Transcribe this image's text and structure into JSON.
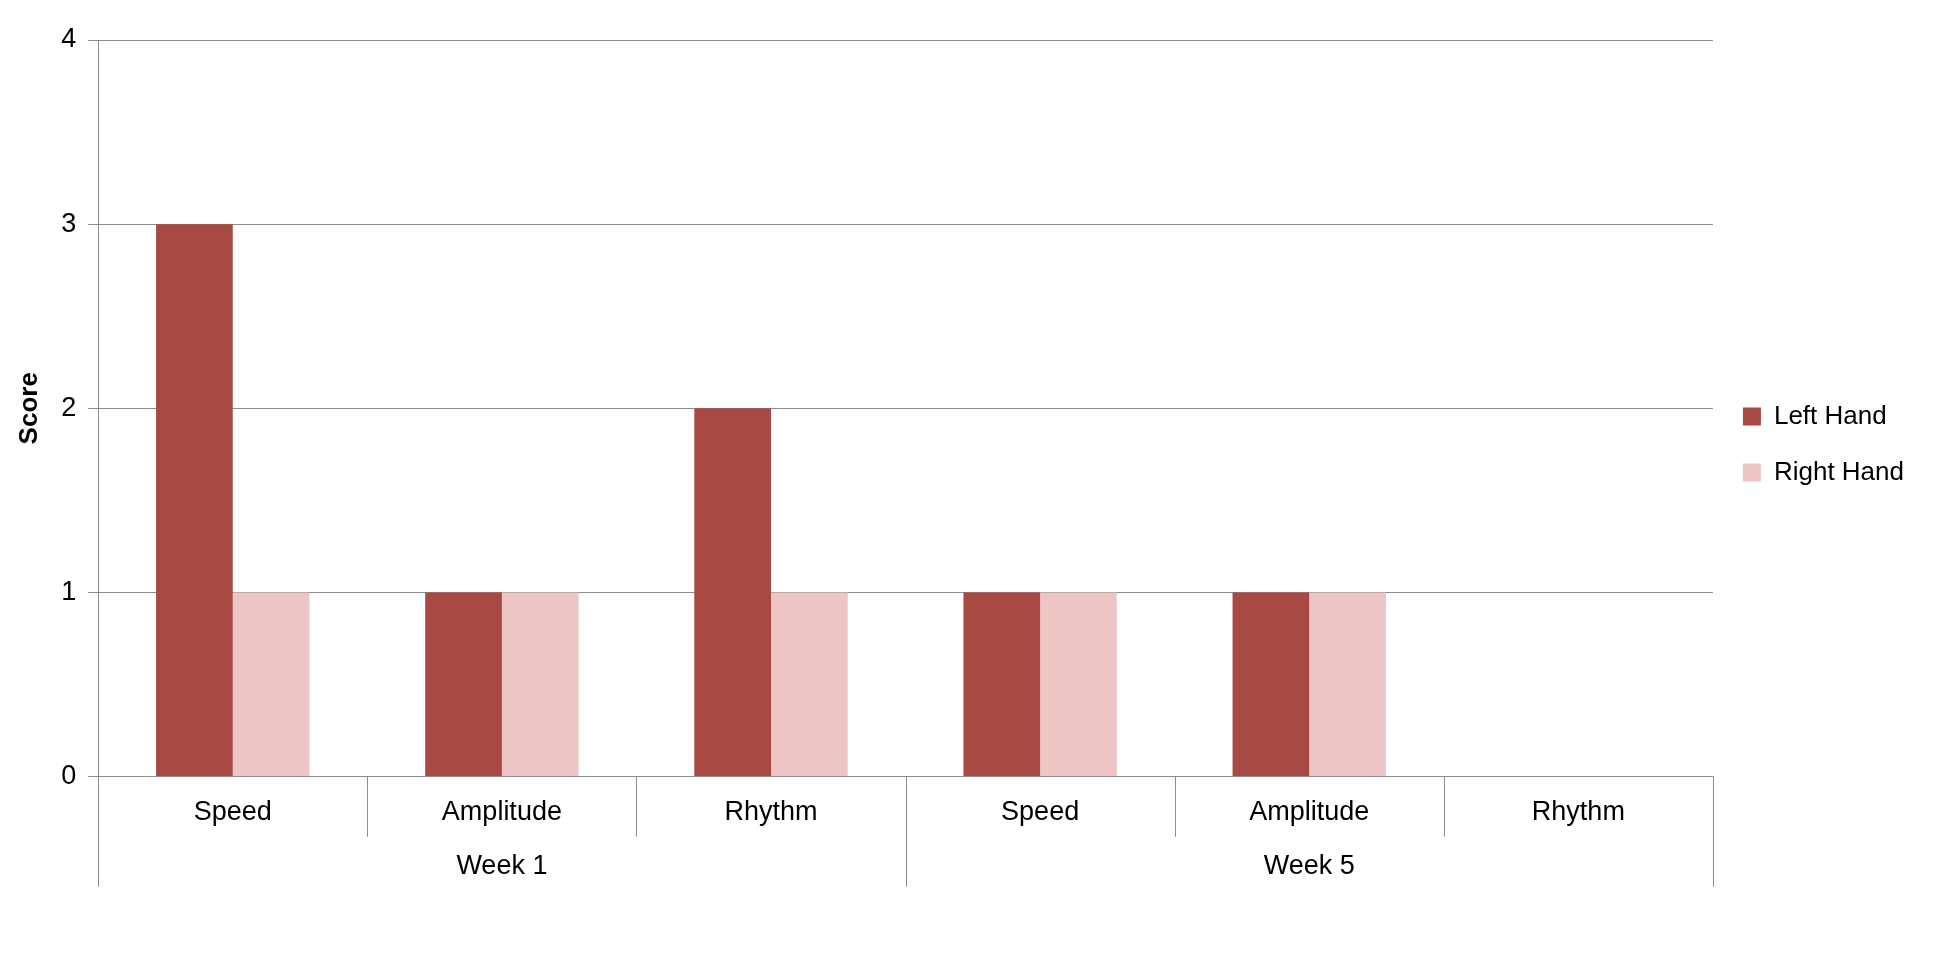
{
  "chart_data": {
    "type": "bar",
    "ylabel": "Score",
    "categories": [
      "Speed",
      "Amplitude",
      "Rhythm",
      "Speed",
      "Amplitude",
      "Rhythm"
    ],
    "series": [
      {
        "name": "Left Hand",
        "color": "#a84a43",
        "values": [
          3,
          1,
          2,
          1,
          1,
          0
        ]
      },
      {
        "name": "Right Hand",
        "color": "#ecc5c4",
        "values": [
          1,
          1,
          1,
          1,
          1,
          0
        ]
      }
    ],
    "ylim": [
      0,
      4
    ],
    "yticks": [
      0,
      1,
      2,
      3,
      4
    ],
    "grid": "y",
    "legend": "right",
    "annotations": [
      "Week 1",
      "Week 5"
    ]
  }
}
